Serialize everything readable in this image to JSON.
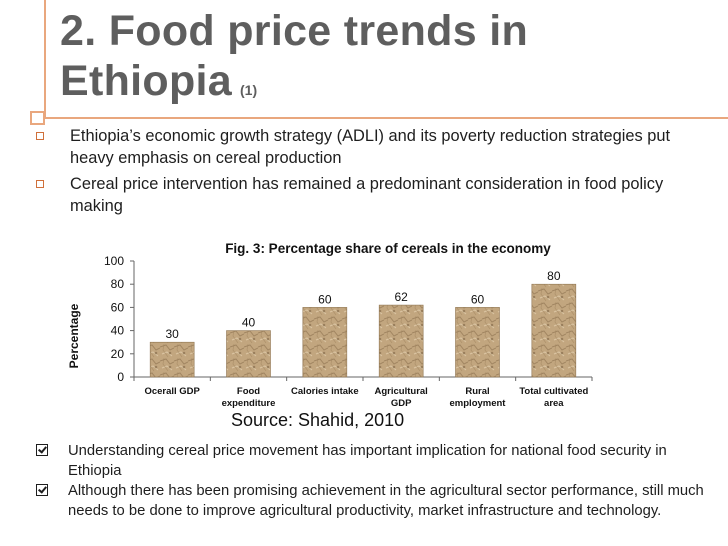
{
  "slide": {
    "title_line1": "2. Food price trends in",
    "title_line2": "Ethiopia",
    "title_ref": "(1)",
    "bullets": [
      "Ethiopia’s economic growth strategy (ADLI)  and its poverty reduction strategies put heavy emphasis on cereal production",
      "Cereal price intervention has remained a predominant consideration in food policy making"
    ],
    "source": "Source: Shahid, 2010",
    "bottom_bullets": [
      "Understanding cereal price movement has important implication for national food security in Ethiopia",
      "Although there has been promising achievement in the agricultural sector performance, still much needs to be done to improve agricultural productivity, market infrastructure and technology."
    ],
    "colors": {
      "accent_line": "#e9a77e",
      "title": "#5e5e5e",
      "bar_fill": "#bfa27c"
    }
  },
  "chart_data": {
    "type": "bar",
    "title": "Fig. 3: Percentage share of cereals  in the economy",
    "ylabel": "Percentage",
    "xlabel": "",
    "categories": [
      [
        "Ocerall GDP"
      ],
      [
        "Food",
        "expenditure"
      ],
      [
        "Calories intake"
      ],
      [
        "Agricultural",
        "GDP"
      ],
      [
        "Rural",
        "employment"
      ],
      [
        "Total cultivated",
        "area"
      ]
    ],
    "values": [
      30,
      40,
      60,
      62,
      60,
      80
    ],
    "ylim": [
      0,
      100
    ],
    "yticks": [
      0,
      20,
      40,
      60,
      80,
      100
    ],
    "grid": false,
    "legend": "none"
  }
}
